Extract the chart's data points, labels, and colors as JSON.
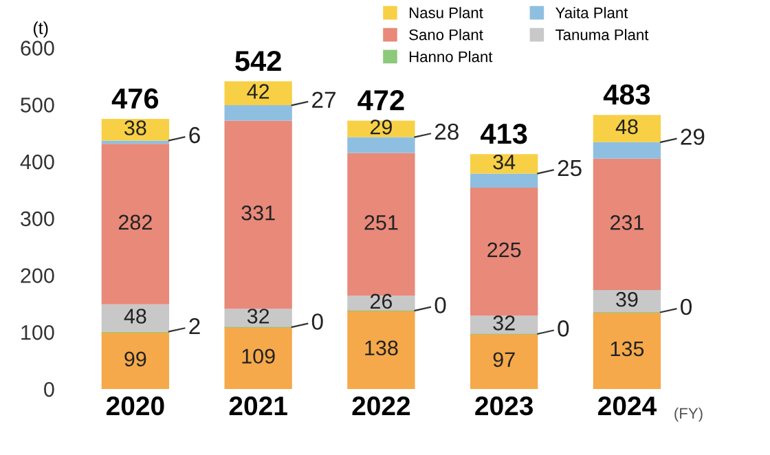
{
  "chart_data": {
    "type": "bar",
    "stacked": true,
    "ylabel": "(t)",
    "xlabel": "(FY)",
    "categories": [
      "2020",
      "2021",
      "2022",
      "2023",
      "2024"
    ],
    "series": [
      {
        "color": "#f5a94a",
        "values": [
          99,
          109,
          138,
          97,
          135
        ]
      },
      {
        "name": "Hanno Plant",
        "color": "#8cc97a",
        "values": [
          2,
          0,
          0,
          0,
          0
        ],
        "value_labels": [
          "2",
          "0",
          "0",
          "0",
          "0"
        ]
      },
      {
        "name": "Tanuma Plant",
        "color": "#c8c8c8",
        "values": [
          48,
          32,
          26,
          32,
          39
        ]
      },
      {
        "name": "Sano Plant",
        "color": "#e8897a",
        "values": [
          282,
          331,
          251,
          225,
          231
        ]
      },
      {
        "name": "Yaita Plant",
        "color": "#8fbfe0",
        "values": [
          6,
          27,
          28,
          25,
          29
        ]
      },
      {
        "name": "Nasu Plant",
        "color": "#f7d046",
        "values": [
          38,
          42,
          29,
          34,
          48
        ]
      }
    ],
    "totals": [
      "476",
      "542",
      "472",
      "413",
      "483"
    ],
    "data_labels": true,
    "ylim": [
      0,
      600
    ],
    "yticks": [
      0,
      100,
      200,
      300,
      400,
      500,
      600
    ],
    "grid": false,
    "legend": "top right"
  }
}
